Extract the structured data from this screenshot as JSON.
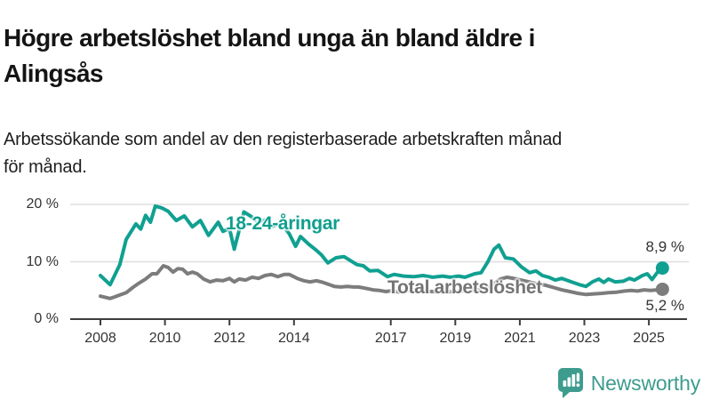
{
  "header": {
    "title_lines": [
      "Högre arbetslöshet bland unga än bland äldre i",
      "Alingsås"
    ],
    "subtitle_lines": [
      "Arbetssökande som andel av den registerbaserade arbetskraften månad",
      "för månad."
    ]
  },
  "chart_data": {
    "type": "line",
    "title": "Högre arbetslöshet bland unga än bland äldre i Alingsås",
    "subtitle": "Arbetssökande som andel av den registerbaserade arbetskraften månad för månad.",
    "unit": "%",
    "x_range": [
      2008,
      2025.6
    ],
    "y_range": [
      0,
      21
    ],
    "grid": "horizontal-only",
    "legend_position": "inline-labels",
    "x_ticks": [
      2008,
      2010,
      2012,
      2014,
      2017,
      2019,
      2021,
      2023,
      2025
    ],
    "y_ticks": [
      {
        "value": 0,
        "label": "0 %"
      },
      {
        "value": 10,
        "label": "10 %"
      },
      {
        "value": 20,
        "label": "20 %"
      }
    ],
    "series": [
      {
        "name": "18-24-åringar",
        "color": "#10a091",
        "end_value": 8.9,
        "end_label": "8,9 %",
        "points": [
          [
            2008.0,
            7.6
          ],
          [
            2008.3,
            6.0
          ],
          [
            2008.6,
            9.5
          ],
          [
            2008.8,
            13.9
          ],
          [
            2009.1,
            16.6
          ],
          [
            2009.25,
            15.7
          ],
          [
            2009.4,
            18.1
          ],
          [
            2009.55,
            16.9
          ],
          [
            2009.7,
            19.7
          ],
          [
            2009.9,
            19.4
          ],
          [
            2010.1,
            18.8
          ],
          [
            2010.35,
            17.2
          ],
          [
            2010.6,
            18.0
          ],
          [
            2010.85,
            16.1
          ],
          [
            2011.1,
            17.2
          ],
          [
            2011.35,
            14.6
          ],
          [
            2011.65,
            16.9
          ],
          [
            2011.8,
            15.3
          ],
          [
            2012.0,
            15.8
          ],
          [
            2012.15,
            12.2
          ],
          [
            2012.45,
            18.7
          ],
          [
            2012.7,
            17.8
          ],
          [
            2012.9,
            16.8
          ],
          [
            2013.1,
            17.3
          ],
          [
            2013.35,
            16.2
          ],
          [
            2013.6,
            16.8
          ],
          [
            2013.85,
            14.9
          ],
          [
            2014.05,
            12.7
          ],
          [
            2014.2,
            14.4
          ],
          [
            2014.45,
            13.1
          ],
          [
            2014.65,
            12.2
          ],
          [
            2014.85,
            11.2
          ],
          [
            2015.05,
            9.8
          ],
          [
            2015.3,
            10.7
          ],
          [
            2015.55,
            10.9
          ],
          [
            2015.75,
            10.2
          ],
          [
            2015.95,
            9.5
          ],
          [
            2016.15,
            9.3
          ],
          [
            2016.35,
            8.4
          ],
          [
            2016.6,
            8.5
          ],
          [
            2016.9,
            7.4
          ],
          [
            2017.1,
            7.8
          ],
          [
            2017.4,
            7.5
          ],
          [
            2017.7,
            7.4
          ],
          [
            2018.0,
            7.6
          ],
          [
            2018.3,
            7.3
          ],
          [
            2018.6,
            7.5
          ],
          [
            2018.85,
            7.3
          ],
          [
            2019.1,
            7.5
          ],
          [
            2019.3,
            7.3
          ],
          [
            2019.6,
            7.9
          ],
          [
            2019.8,
            8.1
          ],
          [
            2020.0,
            9.9
          ],
          [
            2020.2,
            12.2
          ],
          [
            2020.35,
            12.9
          ],
          [
            2020.55,
            10.7
          ],
          [
            2020.8,
            10.5
          ],
          [
            2021.05,
            9.1
          ],
          [
            2021.3,
            8.1
          ],
          [
            2021.5,
            8.4
          ],
          [
            2021.7,
            7.6
          ],
          [
            2021.9,
            7.3
          ],
          [
            2022.1,
            6.8
          ],
          [
            2022.3,
            7.1
          ],
          [
            2022.6,
            6.5
          ],
          [
            2022.85,
            6.0
          ],
          [
            2023.05,
            5.7
          ],
          [
            2023.25,
            6.5
          ],
          [
            2023.45,
            7.0
          ],
          [
            2023.6,
            6.4
          ],
          [
            2023.75,
            7.0
          ],
          [
            2023.95,
            6.5
          ],
          [
            2024.2,
            6.6
          ],
          [
            2024.4,
            7.1
          ],
          [
            2024.55,
            6.8
          ],
          [
            2024.8,
            7.6
          ],
          [
            2024.95,
            7.9
          ],
          [
            2025.1,
            6.9
          ],
          [
            2025.28,
            8.3
          ],
          [
            2025.42,
            8.9
          ]
        ]
      },
      {
        "name": "Total arbetslöshet",
        "color": "#7c7c7c",
        "end_value": 5.2,
        "end_label": "5,2 %",
        "points": [
          [
            2008.0,
            4.0
          ],
          [
            2008.3,
            3.6
          ],
          [
            2008.6,
            4.2
          ],
          [
            2008.8,
            4.6
          ],
          [
            2009.0,
            5.5
          ],
          [
            2009.2,
            6.3
          ],
          [
            2009.4,
            7.0
          ],
          [
            2009.6,
            7.9
          ],
          [
            2009.75,
            7.9
          ],
          [
            2009.95,
            9.3
          ],
          [
            2010.1,
            9.0
          ],
          [
            2010.25,
            8.2
          ],
          [
            2010.4,
            8.8
          ],
          [
            2010.55,
            8.7
          ],
          [
            2010.7,
            7.9
          ],
          [
            2010.85,
            8.2
          ],
          [
            2011.0,
            7.9
          ],
          [
            2011.2,
            7.0
          ],
          [
            2011.4,
            6.5
          ],
          [
            2011.6,
            6.8
          ],
          [
            2011.8,
            6.7
          ],
          [
            2012.0,
            7.1
          ],
          [
            2012.15,
            6.5
          ],
          [
            2012.3,
            7.0
          ],
          [
            2012.5,
            6.8
          ],
          [
            2012.7,
            7.3
          ],
          [
            2012.9,
            7.1
          ],
          [
            2013.1,
            7.6
          ],
          [
            2013.3,
            7.8
          ],
          [
            2013.5,
            7.4
          ],
          [
            2013.7,
            7.8
          ],
          [
            2013.85,
            7.8
          ],
          [
            2014.1,
            7.1
          ],
          [
            2014.3,
            6.7
          ],
          [
            2014.5,
            6.5
          ],
          [
            2014.7,
            6.7
          ],
          [
            2014.9,
            6.4
          ],
          [
            2015.1,
            6.0
          ],
          [
            2015.25,
            5.7
          ],
          [
            2015.45,
            5.6
          ],
          [
            2015.65,
            5.7
          ],
          [
            2015.85,
            5.6
          ],
          [
            2016.0,
            5.6
          ],
          [
            2016.2,
            5.4
          ],
          [
            2016.45,
            5.1
          ],
          [
            2016.65,
            5.0
          ],
          [
            2016.85,
            4.8
          ],
          [
            2017.05,
            5.0
          ],
          [
            2017.25,
            4.7
          ],
          [
            2017.5,
            5.0
          ],
          [
            2017.75,
            5.1
          ],
          [
            2018.0,
            4.9
          ],
          [
            2018.3,
            4.8
          ],
          [
            2018.6,
            4.7
          ],
          [
            2018.9,
            4.8
          ],
          [
            2019.2,
            4.9
          ],
          [
            2019.5,
            5.0
          ],
          [
            2019.8,
            5.2
          ],
          [
            2020.1,
            5.8
          ],
          [
            2020.4,
            7.0
          ],
          [
            2020.6,
            7.3
          ],
          [
            2020.9,
            7.0
          ],
          [
            2021.2,
            6.6
          ],
          [
            2021.5,
            6.2
          ],
          [
            2021.8,
            5.9
          ],
          [
            2022.05,
            5.5
          ],
          [
            2022.3,
            5.1
          ],
          [
            2022.55,
            4.8
          ],
          [
            2022.8,
            4.5
          ],
          [
            2023.05,
            4.3
          ],
          [
            2023.3,
            4.4
          ],
          [
            2023.55,
            4.5
          ],
          [
            2023.75,
            4.6
          ],
          [
            2024.0,
            4.7
          ],
          [
            2024.25,
            4.9
          ],
          [
            2024.45,
            5.0
          ],
          [
            2024.65,
            4.9
          ],
          [
            2024.85,
            5.1
          ],
          [
            2025.05,
            5.0
          ],
          [
            2025.25,
            5.1
          ],
          [
            2025.42,
            5.2
          ]
        ]
      }
    ]
  },
  "colors": {
    "accent_teal": "#10a091",
    "series_gray": "#7c7c7c",
    "gridline": "#dedede",
    "axis": "#3d3d3d",
    "brand_teal": "#3d9c8e"
  },
  "footer": {
    "brand": "Newsworthy"
  }
}
